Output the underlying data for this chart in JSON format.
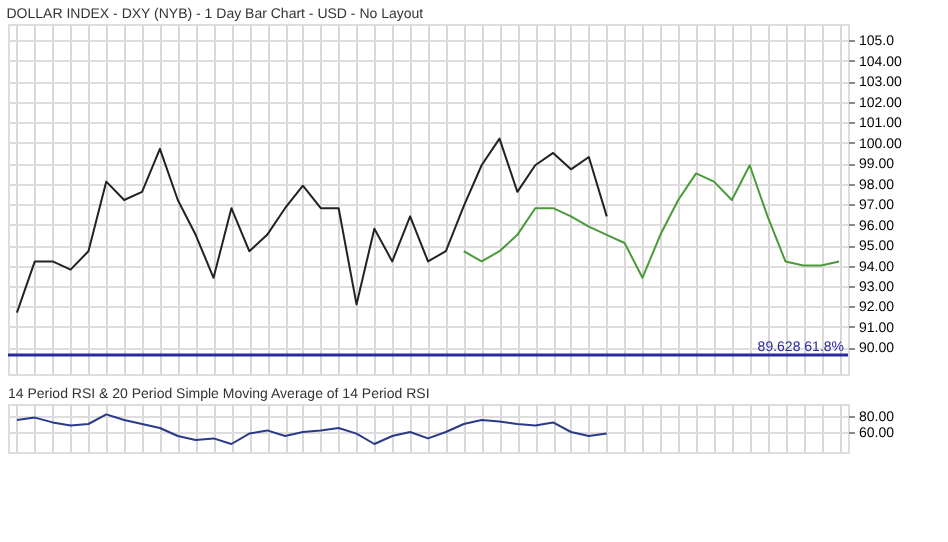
{
  "chart_data": [
    {
      "type": "line",
      "title": "DOLLAR INDEX - DXY (NYB) - 1 Day Bar Chart - USD - No Layout",
      "categories": [
        null,
        null,
        null,
        null,
        null,
        null,
        null,
        null,
        null,
        null,
        null,
        null,
        null,
        null,
        null,
        null,
        null,
        null,
        null,
        null,
        null,
        null,
        null,
        null,
        null,
        null,
        null,
        null,
        null,
        null,
        null,
        null,
        null,
        null,
        null,
        null,
        null,
        null,
        null,
        null,
        null,
        null,
        null,
        null,
        null,
        null,
        null
      ],
      "series": [
        {
          "color": "#222222",
          "values": [
            91.7,
            94.2,
            94.2,
            93.8,
            94.7,
            98.1,
            97.2,
            97.6,
            99.7,
            97.2,
            95.5,
            93.4,
            96.8,
            94.7,
            95.5,
            96.8,
            97.9,
            96.8,
            96.8,
            92.1,
            95.8,
            94.2,
            96.4,
            94.2,
            94.7,
            96.9,
            98.9,
            100.2,
            97.6,
            98.9,
            99.5,
            98.7,
            99.3,
            96.4,
            null,
            null,
            null,
            null,
            null,
            null,
            null,
            null,
            null,
            null,
            null,
            null,
            null
          ]
        },
        {
          "color": "#4a9a3a",
          "values": [
            null,
            null,
            null,
            null,
            null,
            null,
            null,
            null,
            null,
            null,
            null,
            null,
            null,
            null,
            null,
            null,
            null,
            null,
            null,
            null,
            null,
            null,
            null,
            null,
            null,
            94.7,
            94.2,
            94.7,
            95.5,
            96.8,
            96.8,
            96.4,
            95.9,
            95.5,
            95.1,
            93.4,
            95.5,
            97.2,
            98.5,
            98.1,
            97.2,
            98.9,
            96.4,
            94.2,
            94.0,
            94.0,
            94.2
          ]
        }
      ],
      "ylim": [
        88.7,
        105.8
      ],
      "yticks": [
        {
          "value": 90,
          "label": "90.00"
        },
        {
          "value": 91,
          "label": "91.00"
        },
        {
          "value": 92,
          "label": "92.00"
        },
        {
          "value": 93,
          "label": "93.00"
        },
        {
          "value": 94,
          "label": "94.00"
        },
        {
          "value": 95,
          "label": "95.00"
        },
        {
          "value": 96,
          "label": "96.00"
        },
        {
          "value": 97,
          "label": "97.00"
        },
        {
          "value": 98,
          "label": "98.00"
        },
        {
          "value": 99,
          "label": "99.00"
        },
        {
          "value": 100,
          "label": "100.00"
        },
        {
          "value": 101,
          "label": "101.00"
        },
        {
          "value": 102,
          "label": "102.00"
        },
        {
          "value": 103,
          "label": "103.00"
        },
        {
          "value": 104,
          "label": "104.00"
        },
        {
          "value": 105,
          "label": "105.0"
        }
      ],
      "ref_lines": [
        {
          "axis": "y",
          "value": 89.628,
          "label": "89.628   61.8%",
          "color": "#2a2aa0"
        }
      ],
      "grid": true,
      "tick_labels": "y"
    },
    {
      "type": "line",
      "title": "14 Period RSI & 20 Period Simple Moving Average of 14 Period RSI",
      "categories": [
        null,
        null,
        null,
        null,
        null,
        null,
        null,
        null,
        null,
        null,
        null,
        null,
        null,
        null,
        null,
        null,
        null,
        null,
        null,
        null,
        null,
        null,
        null,
        null,
        null,
        null,
        null,
        null,
        null,
        null,
        null,
        null,
        null,
        null,
        null,
        null,
        null,
        null,
        null,
        null,
        null,
        null,
        null,
        null,
        null,
        null,
        null
      ],
      "series": [
        {
          "color": "#2a3a8a",
          "values": [
            75,
            78,
            72,
            68,
            70,
            82,
            75,
            70,
            65,
            55,
            50,
            52,
            45,
            58,
            62,
            55,
            60,
            62,
            65,
            58,
            45,
            55,
            60,
            52,
            60,
            70,
            75,
            73,
            70,
            68,
            72,
            60,
            55,
            58,
            null,
            null,
            null,
            null,
            null,
            null,
            null,
            null,
            null,
            null,
            null,
            null,
            null
          ]
        }
      ],
      "ylim": [
        35,
        95
      ],
      "yticks": [
        {
          "value": 60,
          "label": "60.00"
        },
        {
          "value": 80,
          "label": "80.00"
        }
      ],
      "grid": true,
      "tick_labels": "y"
    }
  ]
}
